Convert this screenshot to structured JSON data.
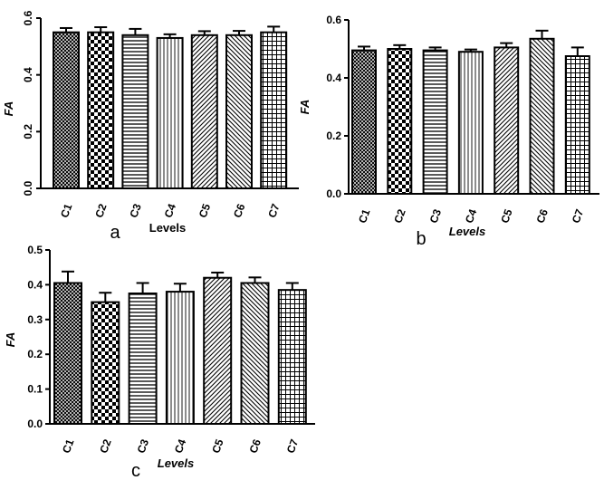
{
  "chart_data": [
    {
      "id": "a",
      "type": "bar",
      "panel_label": "a",
      "ylabel": "FA",
      "xlabel": "Levels",
      "categories": [
        "C1",
        "C2",
        "C3",
        "C4",
        "C5",
        "C6",
        "C7"
      ],
      "values": [
        0.55,
        0.55,
        0.54,
        0.53,
        0.54,
        0.54,
        0.55
      ],
      "errors": [
        0.015,
        0.018,
        0.022,
        0.013,
        0.014,
        0.015,
        0.02
      ],
      "ylim": [
        0,
        0.6
      ],
      "yticks": [
        "0.0",
        "0.2",
        "0.4",
        "0.6"
      ],
      "ytick_values": [
        0,
        0.2,
        0.4,
        0.6
      ],
      "ytick_rotated": true,
      "xlabel_italic": false
    },
    {
      "id": "b",
      "type": "bar",
      "panel_label": "b",
      "ylabel": "FA",
      "xlabel": "Levels",
      "categories": [
        "C1",
        "C2",
        "C3",
        "C4",
        "C5",
        "C6",
        "C7"
      ],
      "values": [
        0.495,
        0.5,
        0.495,
        0.49,
        0.505,
        0.535,
        0.475
      ],
      "errors": [
        0.013,
        0.013,
        0.01,
        0.008,
        0.015,
        0.028,
        0.03
      ],
      "ylim": [
        0,
        0.6
      ],
      "yticks": [
        "0.0",
        "0.2",
        "0.4",
        "0.6"
      ],
      "ytick_values": [
        0,
        0.2,
        0.4,
        0.6
      ],
      "ytick_rotated": false,
      "xlabel_italic": true
    },
    {
      "id": "c",
      "type": "bar",
      "panel_label": "c",
      "ylabel": "FA",
      "xlabel": "Levels",
      "categories": [
        "C1",
        "C2",
        "C3",
        "C4",
        "C5",
        "C6",
        "C7"
      ],
      "values": [
        0.405,
        0.35,
        0.375,
        0.38,
        0.42,
        0.405,
        0.385
      ],
      "errors": [
        0.033,
        0.027,
        0.03,
        0.023,
        0.015,
        0.016,
        0.02
      ],
      "ylim": [
        0,
        0.5
      ],
      "yticks": [
        "0.0",
        "0.1",
        "0.2",
        "0.3",
        "0.4",
        "0.5"
      ],
      "ytick_values": [
        0,
        0.1,
        0.2,
        0.3,
        0.4,
        0.5
      ],
      "ytick_rotated": false,
      "xlabel_italic": true
    }
  ]
}
